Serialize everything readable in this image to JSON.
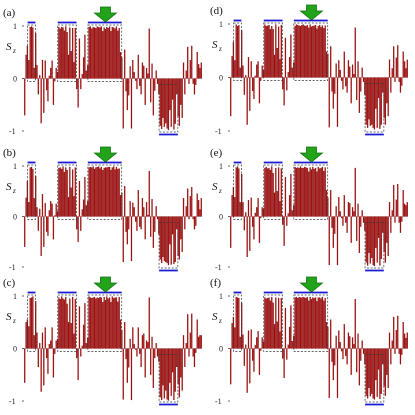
{
  "figure": {
    "bar_color": "#b01010",
    "bar_edge_color": "#6e0000",
    "segment_color": "#1a1ad6",
    "arrow_color": "#22a31a",
    "arrow_edge_color": "#137010",
    "box_color": "#333333"
  },
  "chart_data": [
    {
      "type": "bar",
      "panel_label": "(a)",
      "ylabel": "S",
      "ylabel_sub": "z",
      "ylim": [
        -1,
        1
      ],
      "yticks": [
        1,
        0,
        -1
      ],
      "n": 130,
      "values": [
        -0.7,
        0.45,
        0.62,
        0.35,
        0.98,
        0.99,
        0.97,
        0.2,
        0.86,
        0.25,
        -0.3,
        0.06,
        -0.85,
        0.35,
        -0.65,
        0.34,
        -0.22,
        -0.43,
        0.05,
        0.2,
        0.34,
        -0.5,
        -0.05,
        0.2,
        0.12,
        0.98,
        0.95,
        0.98,
        0.97,
        0.91,
        0.99,
        0.88,
        0.45,
        0.97,
        0.52,
        0.96,
        0.31,
        0.96,
        -0.2,
        -0.55,
        0.76,
        -0.2,
        0.08,
        0.4,
        0.83,
        0.15,
        0.25,
        0.98,
        0.99,
        0.95,
        0.98,
        0.97,
        0.96,
        0.99,
        0.98,
        0.97,
        0.99,
        0.9,
        0.97,
        0.94,
        0.98,
        0.96,
        0.99,
        0.9,
        0.98,
        0.97,
        0.95,
        0.99,
        0.91,
        0.96,
        0.5,
        0.4,
        -0.95,
        0.55,
        -0.24,
        -0.6,
        -0.32,
        0.23,
        -0.95,
        0.35,
        0.12,
        -0.04,
        -0.2,
        0.45,
        -0.14,
        -0.3,
        0.3,
        0.24,
        -0.5,
        0.2,
        0.09,
        0.95,
        -0.45,
        0.28,
        -0.7,
        -0.23,
        0.15,
        -0.1,
        -0.3,
        -0.9,
        -0.96,
        -0.75,
        -0.92,
        -0.85,
        -0.95,
        -0.98,
        -0.6,
        -0.92,
        -0.4,
        -0.97,
        -0.86,
        -0.3,
        -0.72,
        -0.9,
        -0.5,
        -0.75,
        0.3,
        -0.3,
        0.15,
        0.6,
        -0.1,
        0.35,
        0.62,
        -0.1,
        -0.3,
        -0.12,
        0.5,
        0.27,
        0.2,
        0.3
      ],
      "highlights": [
        {
          "start": 3,
          "end": 7,
          "sign": "positive"
        },
        {
          "start": 25,
          "end": 37,
          "sign": "positive"
        },
        {
          "start": 47,
          "end": 70,
          "sign": "positive"
        },
        {
          "start": 99,
          "end": 111,
          "sign": "negative"
        }
      ],
      "arrow_at": 59
    },
    {
      "type": "bar",
      "panel_label": "(b)",
      "ylabel": "S",
      "ylabel_sub": "z",
      "ylim": [
        -1,
        1
      ],
      "yticks": [
        1,
        0,
        -1
      ],
      "n": 130,
      "values": [
        -0.6,
        0.37,
        0.7,
        0.28,
        0.97,
        0.98,
        0.94,
        0.36,
        0.8,
        0.18,
        -0.28,
        0.15,
        -0.78,
        0.44,
        -0.6,
        0.26,
        -0.3,
        -0.38,
        0.12,
        0.3,
        0.25,
        -0.45,
        0.02,
        0.25,
        0.1,
        0.96,
        0.97,
        0.94,
        0.99,
        0.88,
        0.97,
        0.92,
        0.38,
        0.98,
        0.57,
        0.93,
        0.4,
        0.97,
        -0.25,
        -0.5,
        0.7,
        -0.28,
        0.14,
        0.33,
        0.78,
        0.22,
        0.3,
        0.97,
        0.98,
        0.97,
        0.99,
        0.94,
        0.97,
        0.98,
        0.99,
        0.95,
        0.98,
        0.92,
        0.96,
        0.97,
        0.97,
        0.98,
        0.98,
        0.92,
        0.97,
        0.99,
        0.93,
        0.98,
        0.94,
        0.95,
        0.42,
        0.47,
        -0.9,
        0.6,
        -0.3,
        -0.55,
        -0.25,
        0.3,
        -0.88,
        0.27,
        0.18,
        -0.1,
        -0.28,
        0.52,
        -0.2,
        -0.25,
        0.36,
        0.18,
        -0.45,
        0.28,
        0.03,
        0.9,
        -0.4,
        0.34,
        -0.62,
        -0.3,
        0.2,
        -0.05,
        -0.35,
        -0.85,
        -0.92,
        -0.8,
        -0.88,
        -0.9,
        -0.92,
        -0.96,
        -0.55,
        -0.95,
        -0.35,
        -0.94,
        -0.9,
        -0.25,
        -0.78,
        -0.85,
        -0.45,
        -0.7,
        0.36,
        -0.25,
        0.2,
        0.55,
        -0.05,
        0.4,
        0.58,
        -0.05,
        -0.25,
        -0.18,
        0.45,
        0.32,
        0.14,
        0.36
      ],
      "highlights": [
        {
          "start": 3,
          "end": 7,
          "sign": "positive"
        },
        {
          "start": 25,
          "end": 37,
          "sign": "positive"
        },
        {
          "start": 47,
          "end": 70,
          "sign": "positive"
        },
        {
          "start": 99,
          "end": 111,
          "sign": "negative"
        }
      ],
      "arrow_at": 59
    },
    {
      "type": "bar",
      "panel_label": "(c)",
      "ylabel": "S",
      "ylabel_sub": "z",
      "ylim": [
        -1,
        1
      ],
      "yticks": [
        1,
        0,
        -1
      ],
      "n": 130,
      "values": [
        -0.65,
        0.5,
        0.55,
        0.42,
        0.96,
        0.97,
        0.99,
        0.25,
        0.9,
        0.3,
        -0.35,
        0.1,
        -0.82,
        0.3,
        -0.7,
        0.4,
        -0.18,
        -0.48,
        0.08,
        0.15,
        0.4,
        -0.55,
        -0.1,
        0.15,
        0.18,
        0.97,
        0.94,
        0.99,
        0.95,
        0.93,
        0.98,
        0.85,
        0.5,
        0.95,
        0.48,
        0.98,
        0.28,
        0.94,
        -0.18,
        -0.6,
        0.8,
        -0.15,
        0.05,
        0.45,
        0.86,
        0.1,
        0.2,
        0.99,
        0.97,
        0.96,
        0.97,
        0.98,
        0.95,
        0.97,
        0.96,
        0.98,
        0.97,
        0.88,
        0.98,
        0.92,
        0.99,
        0.95,
        0.97,
        0.88,
        0.99,
        0.96,
        0.97,
        0.97,
        0.89,
        0.98,
        0.55,
        0.35,
        -0.97,
        0.5,
        -0.2,
        -0.65,
        -0.36,
        0.18,
        -0.98,
        0.4,
        0.08,
        -0.02,
        -0.15,
        0.4,
        -0.1,
        -0.35,
        0.25,
        0.28,
        -0.55,
        0.15,
        0.12,
        0.97,
        -0.5,
        0.22,
        -0.75,
        -0.18,
        0.1,
        -0.15,
        -0.25,
        -0.93,
        -0.98,
        -0.7,
        -0.95,
        -0.8,
        -0.97,
        -0.99,
        -0.65,
        -0.9,
        -0.45,
        -0.98,
        -0.82,
        -0.35,
        -0.68,
        -0.93,
        -0.55,
        -0.8,
        0.25,
        -0.35,
        0.1,
        0.65,
        -0.15,
        0.3,
        0.66,
        -0.15,
        -0.35,
        -0.08,
        0.55,
        0.22,
        0.25,
        0.25
      ],
      "highlights": [
        {
          "start": 3,
          "end": 7,
          "sign": "positive"
        },
        {
          "start": 25,
          "end": 37,
          "sign": "positive"
        },
        {
          "start": 47,
          "end": 70,
          "sign": "positive"
        },
        {
          "start": 99,
          "end": 111,
          "sign": "negative"
        }
      ],
      "arrow_at": 59
    },
    {
      "type": "bar",
      "panel_label": "(d)",
      "ylabel": "S",
      "ylabel_sub": "z",
      "ylim": [
        -1,
        1
      ],
      "yticks": [
        1,
        0,
        -1
      ],
      "n": 130,
      "values": [
        -0.72,
        0.4,
        0.66,
        0.32,
        0.99,
        0.96,
        0.98,
        0.18,
        0.88,
        0.22,
        -0.32,
        0.04,
        -0.88,
        0.38,
        -0.62,
        0.3,
        -0.25,
        -0.4,
        0.03,
        0.24,
        0.3,
        -0.48,
        -0.06,
        0.22,
        0.14,
        0.99,
        0.96,
        0.97,
        0.98,
        0.9,
        0.96,
        0.9,
        0.42,
        0.99,
        0.55,
        0.95,
        0.34,
        0.98,
        -0.22,
        -0.52,
        0.74,
        -0.24,
        0.1,
        0.38,
        0.8,
        0.18,
        0.28,
        0.96,
        0.99,
        0.98,
        0.97,
        0.96,
        0.98,
        0.99,
        0.97,
        0.96,
        0.98,
        0.93,
        0.99,
        0.95,
        0.96,
        0.97,
        0.98,
        0.91,
        0.96,
        0.98,
        0.94,
        0.97,
        0.92,
        0.97,
        0.48,
        0.44,
        -0.93,
        0.58,
        -0.26,
        -0.58,
        -0.3,
        0.26,
        -0.92,
        0.32,
        0.14,
        -0.06,
        -0.22,
        0.48,
        -0.16,
        -0.28,
        0.32,
        0.2,
        -0.48,
        0.24,
        0.06,
        0.93,
        -0.42,
        0.3,
        -0.66,
        -0.26,
        0.18,
        -0.08,
        -0.32,
        -0.88,
        -0.94,
        -0.78,
        -0.9,
        -0.88,
        -0.94,
        -0.97,
        -0.58,
        -0.94,
        -0.38,
        -0.96,
        -0.88,
        -0.28,
        -0.75,
        -0.88,
        -0.48,
        -0.72,
        0.33,
        -0.28,
        0.17,
        0.58,
        -0.08,
        0.37,
        0.6,
        -0.08,
        -0.28,
        -0.15,
        0.48,
        0.3,
        0.17,
        0.33
      ],
      "highlights": [
        {
          "start": 3,
          "end": 7,
          "sign": "positive"
        },
        {
          "start": 25,
          "end": 37,
          "sign": "positive"
        },
        {
          "start": 47,
          "end": 70,
          "sign": "positive"
        },
        {
          "start": 99,
          "end": 111,
          "sign": "negative"
        }
      ],
      "arrow_at": 59
    },
    {
      "type": "bar",
      "panel_label": "(e)",
      "ylabel": "S",
      "ylabel_sub": "z",
      "ylim": [
        -1,
        1
      ],
      "yticks": [
        1,
        0,
        -1
      ],
      "n": 130,
      "values": [
        -0.62,
        0.42,
        0.58,
        0.38,
        0.97,
        0.99,
        0.95,
        0.28,
        0.84,
        0.28,
        -0.27,
        0.08,
        -0.8,
        0.32,
        -0.68,
        0.37,
        -0.2,
        -0.45,
        0.07,
        0.18,
        0.36,
        -0.52,
        -0.03,
        0.18,
        0.16,
        0.96,
        0.98,
        0.95,
        0.96,
        0.92,
        0.99,
        0.86,
        0.47,
        0.96,
        0.5,
        0.97,
        0.3,
        0.95,
        -0.16,
        -0.58,
        0.78,
        -0.18,
        0.06,
        0.42,
        0.84,
        0.12,
        0.22,
        0.98,
        0.96,
        0.97,
        0.96,
        0.99,
        0.96,
        0.96,
        0.98,
        0.97,
        0.96,
        0.89,
        0.97,
        0.93,
        0.98,
        0.94,
        0.96,
        0.89,
        0.98,
        0.95,
        0.96,
        0.98,
        0.9,
        0.97,
        0.52,
        0.37,
        -0.96,
        0.52,
        -0.22,
        -0.62,
        -0.34,
        0.2,
        -0.96,
        0.38,
        0.1,
        -0.03,
        -0.18,
        0.42,
        -0.12,
        -0.32,
        0.28,
        0.26,
        -0.52,
        0.18,
        0.1,
        0.96,
        -0.48,
        0.25,
        -0.72,
        -0.2,
        0.12,
        -0.12,
        -0.28,
        -0.91,
        -0.97,
        -0.72,
        -0.93,
        -0.82,
        -0.96,
        -0.98,
        -0.62,
        -0.91,
        -0.42,
        -0.97,
        -0.84,
        -0.32,
        -0.7,
        -0.91,
        -0.52,
        -0.78,
        0.28,
        -0.32,
        0.12,
        0.62,
        -0.12,
        0.33,
        0.64,
        -0.12,
        -0.32,
        -0.1,
        0.52,
        0.25,
        0.22,
        0.28
      ],
      "highlights": [
        {
          "start": 3,
          "end": 7,
          "sign": "positive"
        },
        {
          "start": 25,
          "end": 37,
          "sign": "positive"
        },
        {
          "start": 47,
          "end": 70,
          "sign": "positive"
        },
        {
          "start": 99,
          "end": 111,
          "sign": "negative"
        }
      ],
      "arrow_at": 59
    },
    {
      "type": "bar",
      "panel_label": "(f)",
      "ylabel": "S",
      "ylabel_sub": "z",
      "ylim": [
        -1,
        1
      ],
      "yticks": [
        1,
        0,
        -1
      ],
      "n": 130,
      "values": [
        -0.68,
        0.48,
        0.6,
        0.4,
        0.98,
        0.97,
        0.96,
        0.22,
        0.87,
        0.26,
        -0.33,
        0.07,
        -0.84,
        0.34,
        -0.66,
        0.36,
        -0.23,
        -0.44,
        0.06,
        0.21,
        0.33,
        -0.5,
        -0.04,
        0.21,
        0.13,
        0.97,
        0.95,
        0.96,
        0.97,
        0.91,
        0.98,
        0.87,
        0.46,
        0.97,
        0.51,
        0.96,
        0.32,
        0.96,
        -0.19,
        -0.56,
        0.77,
        -0.21,
        0.07,
        0.41,
        0.82,
        0.14,
        0.24,
        0.97,
        0.98,
        0.96,
        0.98,
        0.97,
        0.97,
        0.98,
        0.97,
        0.96,
        0.98,
        0.91,
        0.98,
        0.94,
        0.97,
        0.96,
        0.97,
        0.9,
        0.97,
        0.97,
        0.95,
        0.98,
        0.91,
        0.96,
        0.5,
        0.41,
        -0.94,
        0.55,
        -0.25,
        -0.6,
        -0.32,
        0.24,
        -0.94,
        0.34,
        0.12,
        -0.05,
        -0.2,
        0.46,
        -0.14,
        -0.3,
        0.3,
        0.23,
        -0.5,
        0.21,
        0.08,
        0.94,
        -0.45,
        0.28,
        -0.7,
        -0.23,
        0.15,
        -0.1,
        -0.3,
        -0.9,
        -0.95,
        -0.75,
        -0.91,
        -0.86,
        -0.95,
        -0.97,
        -0.6,
        -0.92,
        -0.4,
        -0.96,
        -0.86,
        -0.3,
        -0.72,
        -0.9,
        -0.5,
        -0.75,
        0.3,
        -0.3,
        0.15,
        0.6,
        -0.1,
        0.35,
        0.62,
        -0.1,
        -0.3,
        -0.12,
        0.5,
        0.28,
        0.2,
        0.3
      ],
      "highlights": [
        {
          "start": 3,
          "end": 7,
          "sign": "positive"
        },
        {
          "start": 25,
          "end": 37,
          "sign": "positive"
        },
        {
          "start": 47,
          "end": 70,
          "sign": "positive"
        },
        {
          "start": 99,
          "end": 111,
          "sign": "negative"
        }
      ],
      "arrow_at": 59
    }
  ]
}
